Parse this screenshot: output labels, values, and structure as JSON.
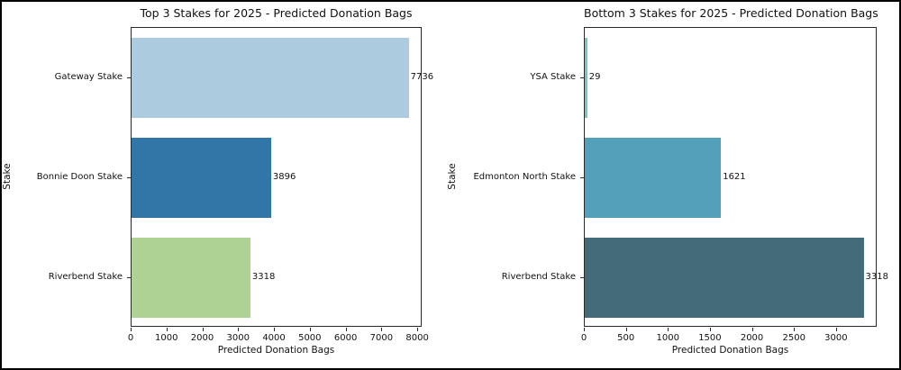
{
  "figure": {
    "background": "#ffffff",
    "border_color": "#000000",
    "spine_color": "#2a2a2a",
    "text_color": "#111111"
  },
  "chart_data": [
    {
      "type": "bar",
      "orientation": "horizontal",
      "title": "Top 3 Stakes for 2025 - Predicted Donation Bags",
      "categories": [
        "Gateway Stake",
        "Bonnie Doon Stake",
        "Riverbend Stake"
      ],
      "values": [
        7736,
        3896,
        3318
      ],
      "value_labels": [
        "7736",
        "3896",
        "3318"
      ],
      "bar_colors": [
        "#accbdf",
        "#3276a8",
        "#aed293"
      ],
      "xlabel": "Predicted Donation Bags",
      "ylabel": "Stake",
      "xlim": [
        0,
        8123
      ],
      "xticks": [
        0,
        1000,
        2000,
        3000,
        4000,
        5000,
        6000,
        7000,
        8000
      ],
      "grid": false,
      "legend": null
    },
    {
      "type": "bar",
      "orientation": "horizontal",
      "title": "Bottom 3 Stakes for 2025 - Predicted Donation Bags",
      "categories": [
        "YSA Stake",
        "Edmonton North Stake",
        "Riverbend Stake"
      ],
      "values": [
        29,
        1621,
        3318
      ],
      "value_labels": [
        "29",
        "1621",
        "3318"
      ],
      "bar_colors": [
        "#74c8c0",
        "#52a0ba",
        "#436b79"
      ],
      "xlabel": "Predicted Donation Bags",
      "ylabel": "Stake",
      "xlim": [
        0,
        3484
      ],
      "xticks": [
        0,
        500,
        1000,
        1500,
        2000,
        2500,
        3000
      ],
      "grid": false,
      "legend": null
    }
  ]
}
